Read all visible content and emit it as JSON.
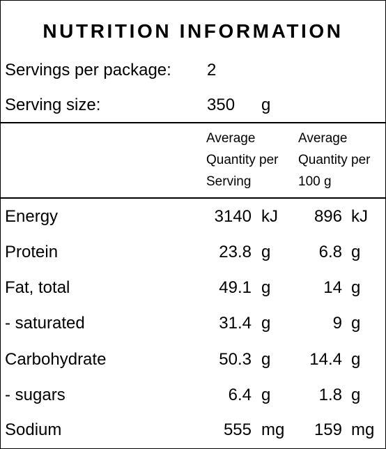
{
  "title": "NUTRITION INFORMATION",
  "servings": {
    "label": "Servings per package:",
    "value": "2"
  },
  "serving_size": {
    "label": "Serving size:",
    "value": "350",
    "unit": "g"
  },
  "headers": {
    "per_serving": [
      "Average",
      "Quantity per",
      "Serving"
    ],
    "per_100g": [
      "Average",
      "Quantity per",
      "100 g"
    ]
  },
  "rows": [
    {
      "label": "Energy",
      "per_serving": "3140",
      "per_serving_unit": "kJ",
      "per_100g": "896",
      "per_100g_unit": "kJ"
    },
    {
      "label": "Protein",
      "per_serving": "23.8",
      "per_serving_unit": "g",
      "per_100g": "6.8",
      "per_100g_unit": "g"
    },
    {
      "label": "Fat, total",
      "per_serving": "49.1",
      "per_serving_unit": "g",
      "per_100g": "14",
      "per_100g_unit": "g"
    },
    {
      "label": "- saturated",
      "per_serving": "31.4",
      "per_serving_unit": "g",
      "per_100g": "9",
      "per_100g_unit": "g"
    },
    {
      "label": "Carbohydrate",
      "per_serving": "50.3",
      "per_serving_unit": "g",
      "per_100g": "14.4",
      "per_100g_unit": "g"
    },
    {
      "label": "- sugars",
      "per_serving": "6.4",
      "per_serving_unit": "g",
      "per_100g": "1.8",
      "per_100g_unit": "g"
    },
    {
      "label": "Sodium",
      "per_serving": "555",
      "per_serving_unit": "mg",
      "per_100g": "159",
      "per_100g_unit": "mg"
    }
  ]
}
